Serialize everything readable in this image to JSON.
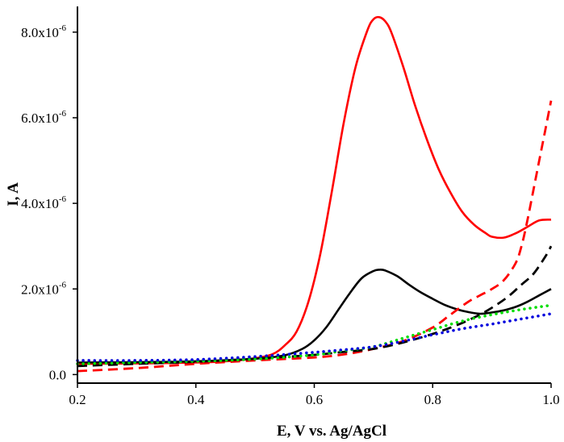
{
  "chart_data": {
    "type": "line",
    "title": "",
    "xlabel": "E, V vs. Ag/AgCl",
    "ylabel": "I, A",
    "xlim": [
      0.2,
      1.0
    ],
    "ylim": [
      -2e-07,
      8.6e-06
    ],
    "grid": false,
    "legend": "none",
    "x_ticks": [
      {
        "value": 0.2,
        "label": "0.2"
      },
      {
        "value": 0.4,
        "label": "0.4"
      },
      {
        "value": 0.6,
        "label": "0.6"
      },
      {
        "value": 0.8,
        "label": "0.8"
      },
      {
        "value": 1.0,
        "label": "1.0"
      }
    ],
    "y_ticks": [
      {
        "value": 0,
        "label": "0.0",
        "exp": ""
      },
      {
        "value": 2e-06,
        "label": "2.0x10",
        "exp": "-6"
      },
      {
        "value": 4e-06,
        "label": "4.0x10",
        "exp": "-6"
      },
      {
        "value": 6e-06,
        "label": "6.0x10",
        "exp": "-6"
      },
      {
        "value": 8e-06,
        "label": "8.0x10",
        "exp": "-6"
      }
    ],
    "series": [
      {
        "color": "#ff0000",
        "style": "solid",
        "x": [
          0.2,
          0.3,
          0.4,
          0.45,
          0.5,
          0.53,
          0.55,
          0.57,
          0.59,
          0.61,
          0.63,
          0.65,
          0.67,
          0.69,
          0.7,
          0.71,
          0.72,
          0.73,
          0.75,
          0.77,
          0.79,
          0.81,
          0.83,
          0.85,
          0.87,
          0.89,
          0.9,
          0.92,
          0.94,
          0.96,
          0.98,
          1.0
        ],
        "y": [
          2.5e-07,
          2.6e-07,
          2.8e-07,
          3.1e-07,
          3.8e-07,
          4.8e-07,
          6.8e-07,
          1e-06,
          1.7e-06,
          2.8e-06,
          4.3e-06,
          5.9e-06,
          7.2e-06,
          8.05e-06,
          8.3e-06,
          8.35e-06,
          8.25e-06,
          8e-06,
          7.2e-06,
          6.3e-06,
          5.5e-06,
          4.8e-06,
          4.25e-06,
          3.8e-06,
          3.5e-06,
          3.3e-06,
          3.22e-06,
          3.2e-06,
          3.3e-06,
          3.45e-06,
          3.6e-06,
          3.62e-06
        ]
      },
      {
        "color": "#000000",
        "style": "solid",
        "x": [
          0.2,
          0.3,
          0.4,
          0.5,
          0.55,
          0.58,
          0.6,
          0.62,
          0.64,
          0.66,
          0.68,
          0.7,
          0.71,
          0.72,
          0.74,
          0.76,
          0.78,
          0.8,
          0.82,
          0.84,
          0.86,
          0.88,
          0.9,
          0.92,
          0.94,
          0.96,
          0.98,
          1.0
        ],
        "y": [
          2.8e-07,
          2.9e-07,
          3.1e-07,
          3.7e-07,
          4.5e-07,
          6e-07,
          8e-07,
          1.1e-06,
          1.5e-06,
          1.9e-06,
          2.25e-06,
          2.42e-06,
          2.45e-06,
          2.43e-06,
          2.3e-06,
          2.1e-06,
          1.92e-06,
          1.77e-06,
          1.63e-06,
          1.53e-06,
          1.46e-06,
          1.42e-06,
          1.45e-06,
          1.5e-06,
          1.58e-06,
          1.7e-06,
          1.85e-06,
          2e-06
        ]
      },
      {
        "color": "#ff0000",
        "style": "dash",
        "x": [
          0.2,
          0.3,
          0.4,
          0.5,
          0.6,
          0.65,
          0.7,
          0.75,
          0.8,
          0.83,
          0.86,
          0.88,
          0.9,
          0.92,
          0.94,
          0.95,
          0.96,
          0.97,
          0.98,
          0.99,
          1.0
        ],
        "y": [
          8e-08,
          1.5e-07,
          2.5e-07,
          3.3e-07,
          4e-07,
          4.7e-07,
          6e-07,
          7.8e-07,
          1.1e-06,
          1.4e-06,
          1.7e-06,
          1.85e-06,
          2e-06,
          2.2e-06,
          2.6e-06,
          3e-06,
          3.6e-06,
          4.3e-06,
          5e-06,
          5.7e-06,
          6.4e-06
        ]
      },
      {
        "color": "#000000",
        "style": "dash",
        "x": [
          0.2,
          0.3,
          0.4,
          0.5,
          0.6,
          0.65,
          0.7,
          0.75,
          0.8,
          0.84,
          0.88,
          0.91,
          0.93,
          0.95,
          0.97,
          0.99,
          1.0
        ],
        "y": [
          2e-07,
          2.5e-07,
          3e-07,
          3.7e-07,
          4.6e-07,
          5.3e-07,
          6e-07,
          7.5e-07,
          9.5e-07,
          1.15e-06,
          1.4e-06,
          1.65e-06,
          1.85e-06,
          2.1e-06,
          2.35e-06,
          2.75e-06,
          3e-06
        ]
      },
      {
        "color": "#00dd00",
        "style": "dot",
        "x": [
          0.2,
          0.3,
          0.4,
          0.5,
          0.6,
          0.65,
          0.7,
          0.75,
          0.8,
          0.85,
          0.9,
          0.95,
          1.0
        ],
        "y": [
          2.5e-07,
          2.8e-07,
          3.1e-07,
          3.6e-07,
          4.6e-07,
          5.6e-07,
          6.5e-07,
          8.5e-07,
          1.05e-06,
          1.25e-06,
          1.4e-06,
          1.52e-06,
          1.62e-06
        ]
      },
      {
        "color": "#0000dd",
        "style": "dot",
        "x": [
          0.2,
          0.3,
          0.4,
          0.5,
          0.6,
          0.65,
          0.7,
          0.75,
          0.8,
          0.85,
          0.9,
          0.95,
          1.0
        ],
        "y": [
          3.3e-07,
          3.3e-07,
          3.5e-07,
          4.2e-07,
          5.2e-07,
          5.8e-07,
          6.5e-07,
          7.8e-07,
          9.3e-07,
          1.07e-06,
          1.18e-06,
          1.3e-06,
          1.42e-06
        ]
      }
    ]
  }
}
